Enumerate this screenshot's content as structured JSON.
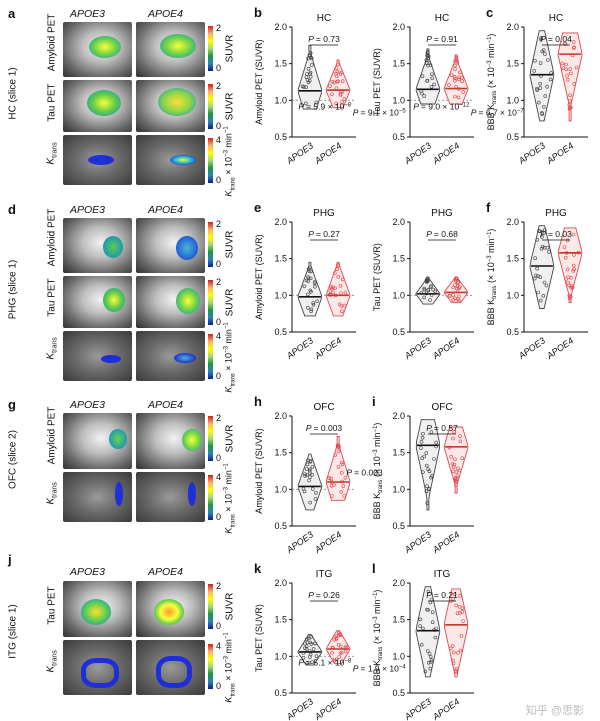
{
  "figure": {
    "panels": {
      "a": {
        "letter": "a",
        "group1": "APOE3",
        "group2": "APOE4",
        "region_label": "HC (slice 1)",
        "rows": [
          "Amyloid PET",
          "Tau PET",
          "K",
          "trans"
        ],
        "cbar_labels": [
          "SUVR",
          "SUVR",
          "K",
          "trans",
          " × 10",
          "−3",
          " min",
          "−1"
        ],
        "ticks": [
          "2",
          "0",
          "2",
          "0",
          "4",
          "0"
        ]
      },
      "d": {
        "letter": "d",
        "group1": "APOE3",
        "group2": "APOE4",
        "region_label": "PHG (slice 1)",
        "rows": [
          "Amyloid PET",
          "Tau PET",
          "K",
          "trans"
        ],
        "cbar_labels": [
          "SUVR",
          "SUVR",
          "K",
          "trans",
          " × 10",
          "−3",
          " min",
          "−1"
        ],
        "ticks": [
          "2",
          "0",
          "2",
          "0",
          "4",
          "0"
        ]
      },
      "g": {
        "letter": "g",
        "group1": "APOE3",
        "group2": "APOE4",
        "region_label": "OFC (slice 2)",
        "rows": [
          "Amyloid PET",
          "K",
          "trans"
        ],
        "cbar_labels": [
          "SUVR",
          "K",
          "trans",
          " × 10",
          "−3",
          " min",
          "−1"
        ],
        "ticks": [
          "2",
          "0",
          "4",
          "0"
        ]
      },
      "j": {
        "letter": "j",
        "group1": "APOE3",
        "group2": "APOE4",
        "region_label": "ITG (slice 1)",
        "rows": [
          "Tau PET",
          "K",
          "trans"
        ],
        "cbar_labels": [
          "SUVR",
          "K",
          "trans",
          " × 10",
          "−3",
          " min",
          "−1"
        ],
        "ticks": [
          "2",
          "0",
          "4",
          "0"
        ]
      }
    },
    "watermark": "知乎 @思影"
  },
  "chart_data": [
    {
      "id": "b1",
      "letter": "b",
      "type": "violin",
      "title": "HC",
      "ylabel": "Amyloid PET (SUVR)",
      "categories": [
        "APOE3",
        "APOE4"
      ],
      "ylim": [
        0.5,
        2.0
      ],
      "yticks": [
        "0.5",
        "1.0",
        "1.5",
        "2.0"
      ],
      "ytick_values": [
        0.5,
        1.0,
        1.5,
        2.0
      ],
      "medians": [
        1.13,
        1.14
      ],
      "ref_line": 1.0,
      "max": [
        1.75,
        1.55
      ],
      "min": [
        0.88,
        0.9
      ],
      "p_main": "= 0.73",
      "p_notes": [
        {
          "p": "= 9.1 × 10",
          "exp": "−5",
          "at": [
            0.95,
            0.68
          ]
        },
        {
          "p": "= 5.9 × 10",
          "exp": "−8",
          "at": [
            0.1,
            0.57
          ]
        }
      ]
    },
    {
      "id": "b2",
      "letter": "",
      "type": "violin",
      "title": "HC",
      "ylabel": "Tau PET (SUVR)",
      "categories": [
        "APOE3",
        "APOE4"
      ],
      "ylim": [
        0.5,
        2.0
      ],
      "yticks": [
        "0.5",
        "1.0",
        "1.5",
        "2.0"
      ],
      "ytick_values": [
        0.5,
        1.0,
        1.5,
        2.0
      ],
      "medians": [
        1.15,
        1.16
      ],
      "ref_line": 1.0,
      "max": [
        1.7,
        1.62
      ],
      "min": [
        0.95,
        0.95
      ],
      "p_main": "= 0.91",
      "p_notes": [
        {
          "p": "= 6.7 × 10",
          "exp": "−7",
          "at": [
            0.95,
            0.68
          ]
        },
        {
          "p": "= 9.0 × 10",
          "exp": "−12",
          "at": [
            0.05,
            0.57
          ]
        }
      ]
    },
    {
      "id": "c",
      "letter": "c",
      "type": "violin",
      "title": "HC",
      "ylabel": "BBB K",
      "ylabel_sub": "trans",
      "ylabel_unit": "(× 10",
      "ylabel_exp": "−3",
      "ylabel_end": " min",
      "ylabel_exp2": "−1",
      "ylabel_close": ")",
      "categories": [
        "APOE3",
        "APOE4"
      ],
      "ylim": [
        0.5,
        2.0
      ],
      "yticks": [
        "0.5",
        "1.0",
        "1.5",
        "2.0"
      ],
      "ytick_values": [
        0.5,
        1.0,
        1.5,
        2.0
      ],
      "medians": [
        1.35,
        1.63
      ],
      "ref_line": null,
      "max": [
        1.95,
        1.92
      ],
      "min": [
        0.72,
        0.72
      ],
      "p_main": "= 0.04",
      "p_notes": []
    },
    {
      "id": "e1",
      "letter": "e",
      "type": "violin",
      "title": "PHG",
      "ylabel": "Amyloid PET (SUVR)",
      "categories": [
        "APOE3",
        "APOE4"
      ],
      "ylim": [
        0.5,
        2.0
      ],
      "yticks": [
        "0.5",
        "1.0",
        "1.5",
        "2.0"
      ],
      "ytick_values": [
        0.5,
        1.0,
        1.5,
        2.0
      ],
      "medians": [
        0.98,
        1.0
      ],
      "ref_line": 1.0,
      "max": [
        1.45,
        1.45
      ],
      "min": [
        0.72,
        0.72
      ],
      "p_main": "= 0.27",
      "p_notes": []
    },
    {
      "id": "e2",
      "letter": "",
      "type": "violin",
      "title": "PHG",
      "ylabel": "Tau PET (SUVR)",
      "categories": [
        "APOE3",
        "APOE4"
      ],
      "ylim": [
        0.5,
        2.0
      ],
      "yticks": [
        "0.5",
        "1.0",
        "1.5",
        "2.0"
      ],
      "ytick_values": [
        0.5,
        1.0,
        1.5,
        2.0
      ],
      "medians": [
        1.02,
        1.04
      ],
      "ref_line": 1.0,
      "max": [
        1.25,
        1.25
      ],
      "min": [
        0.88,
        0.9
      ],
      "p_main": "= 0.68",
      "p_notes": []
    },
    {
      "id": "f",
      "letter": "f",
      "type": "violin",
      "title": "PHG",
      "ylabel": "BBB K",
      "ylabel_sub": "trans",
      "ylabel_unit": "(× 10",
      "ylabel_exp": "−3",
      "ylabel_end": " min",
      "ylabel_exp2": "−1",
      "ylabel_close": ")",
      "categories": [
        "APOE3",
        "APOE4"
      ],
      "ylim": [
        0.5,
        2.0
      ],
      "yticks": [
        "0.5",
        "1.0",
        "1.5",
        "2.0"
      ],
      "ytick_values": [
        0.5,
        1.0,
        1.5,
        2.0
      ],
      "medians": [
        1.4,
        1.58
      ],
      "ref_line": null,
      "max": [
        1.95,
        1.92
      ],
      "min": [
        0.82,
        0.9
      ],
      "p_main": "= 0.03",
      "p_notes": []
    },
    {
      "id": "h",
      "letter": "h",
      "type": "violin",
      "title": "OFC",
      "ylabel": "Amyloid PET (SUVR)",
      "categories": [
        "APOE3",
        "APOE4"
      ],
      "ylim": [
        0.5,
        2.0
      ],
      "yticks": [
        "0.5",
        "1.0",
        "1.5",
        "2.0"
      ],
      "ytick_values": [
        0.5,
        1.0,
        1.5,
        2.0
      ],
      "medians": [
        1.04,
        1.1
      ],
      "ref_line": 1.0,
      "max": [
        1.48,
        1.72
      ],
      "min": [
        0.72,
        0.85
      ],
      "p_main": "= 0.003",
      "p_notes": [
        {
          "p": "= 0.003",
          "exp": "",
          "at": [
            0.85,
            0.15
          ]
        }
      ]
    },
    {
      "id": "i",
      "letter": "i",
      "type": "violin",
      "title": "OFC",
      "ylabel": "BBB K",
      "ylabel_sub": "trans",
      "ylabel_unit": "(× 10",
      "ylabel_exp": "−3",
      "ylabel_end": " min",
      "ylabel_exp2": "−1",
      "ylabel_close": ")",
      "categories": [
        "APOE3",
        "APOE4"
      ],
      "ylim": [
        0.5,
        2.0
      ],
      "yticks": [
        "0.5",
        "1.0",
        "1.5",
        "2.0"
      ],
      "ytick_values": [
        0.5,
        1.0,
        1.5,
        2.0
      ],
      "medians": [
        1.6,
        1.58
      ],
      "ref_line": null,
      "max": [
        1.95,
        1.85
      ],
      "min": [
        0.72,
        0.95
      ],
      "p_main": "= 0.57",
      "p_notes": []
    },
    {
      "id": "k",
      "letter": "k",
      "type": "violin",
      "title": "ITG",
      "ylabel": "Tau PET (SUVR)",
      "categories": [
        "APOE3",
        "APOE4"
      ],
      "ylim": [
        0.5,
        2.0
      ],
      "yticks": [
        "0.5",
        "1.0",
        "1.5",
        "2.0"
      ],
      "ytick_values": [
        0.5,
        1.0,
        1.5,
        2.0
      ],
      "medians": [
        1.06,
        1.1
      ],
      "ref_line": 1.0,
      "max": [
        1.3,
        1.35
      ],
      "min": [
        0.88,
        0.9
      ],
      "p_main": "= 0.26",
      "p_notes": [
        {
          "p": "= 1.9 × 10",
          "exp": "−4",
          "at": [
            0.95,
            0.68
          ]
        },
        {
          "p": "= 5.1 × 10",
          "exp": "−8",
          "at": [
            0.1,
            0.57
          ]
        }
      ]
    },
    {
      "id": "l",
      "letter": "l",
      "type": "violin",
      "title": "ITG",
      "ylabel": "BBB K",
      "ylabel_sub": "trans",
      "ylabel_unit": "(× 10",
      "ylabel_exp": "−3",
      "ylabel_end": " min",
      "ylabel_exp2": "−1",
      "ylabel_close": ")",
      "categories": [
        "APOE3",
        "APOE4"
      ],
      "ylim": [
        0.5,
        2.0
      ],
      "yticks": [
        "0.5",
        "1.0",
        "1.5",
        "2.0"
      ],
      "ytick_values": [
        0.5,
        1.0,
        1.5,
        2.0
      ],
      "medians": [
        1.35,
        1.43
      ],
      "ref_line": null,
      "max": [
        1.95,
        1.92
      ],
      "min": [
        0.72,
        0.72
      ],
      "p_main": "= 0.21",
      "p_notes": []
    }
  ]
}
